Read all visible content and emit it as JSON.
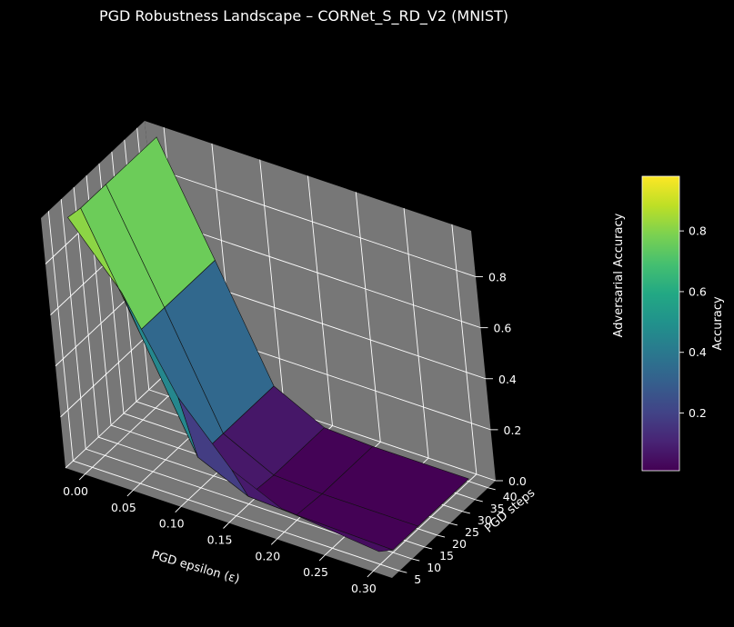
{
  "chart_data": {
    "type": "surface",
    "title": "PGD Robustness Landscape – CORNet_S_RD_V2 (MNIST)",
    "xlabel": "PGD epsilon (ε)",
    "ylabel": "PGD steps",
    "zlabel": "Adversarial Accuracy",
    "colorbar_label": "Accuracy",
    "colormap": "viridis",
    "xlim": [
      -0.02,
      0.32
    ],
    "ylim": [
      2,
      43
    ],
    "zlim": [
      0.0,
      0.98
    ],
    "grid": true,
    "pane_color": "#777777",
    "background": "#000000",
    "x_ticks": [
      "0.00",
      "0.05",
      "0.10",
      "0.15",
      "0.20",
      "0.25",
      "0.30"
    ],
    "y_ticks": [
      "5",
      "10",
      "15",
      "20",
      "25",
      "30",
      "35",
      "40"
    ],
    "z_ticks": [
      "0.0",
      "0.2",
      "0.4",
      "0.6",
      "0.8"
    ],
    "colorbar_ticks": [
      "0.2",
      "0.4",
      "0.6",
      "0.8"
    ],
    "colorbar_range": [
      0.01,
      0.98
    ],
    "eps": [
      0.0,
      0.05,
      0.1,
      0.15,
      0.2,
      0.3
    ],
    "steps": [
      5,
      10,
      20,
      40
    ],
    "accuracy": [
      [
        0.98,
        0.97,
        0.97,
        0.97
      ],
      [
        0.75,
        0.55,
        0.55,
        0.55
      ],
      [
        0.4,
        0.12,
        0.12,
        0.12
      ],
      [
        0.18,
        0.03,
        0.02,
        0.02
      ],
      [
        0.09,
        0.02,
        0.01,
        0.01
      ],
      [
        0.05,
        0.01,
        0.01,
        0.01
      ]
    ]
  }
}
